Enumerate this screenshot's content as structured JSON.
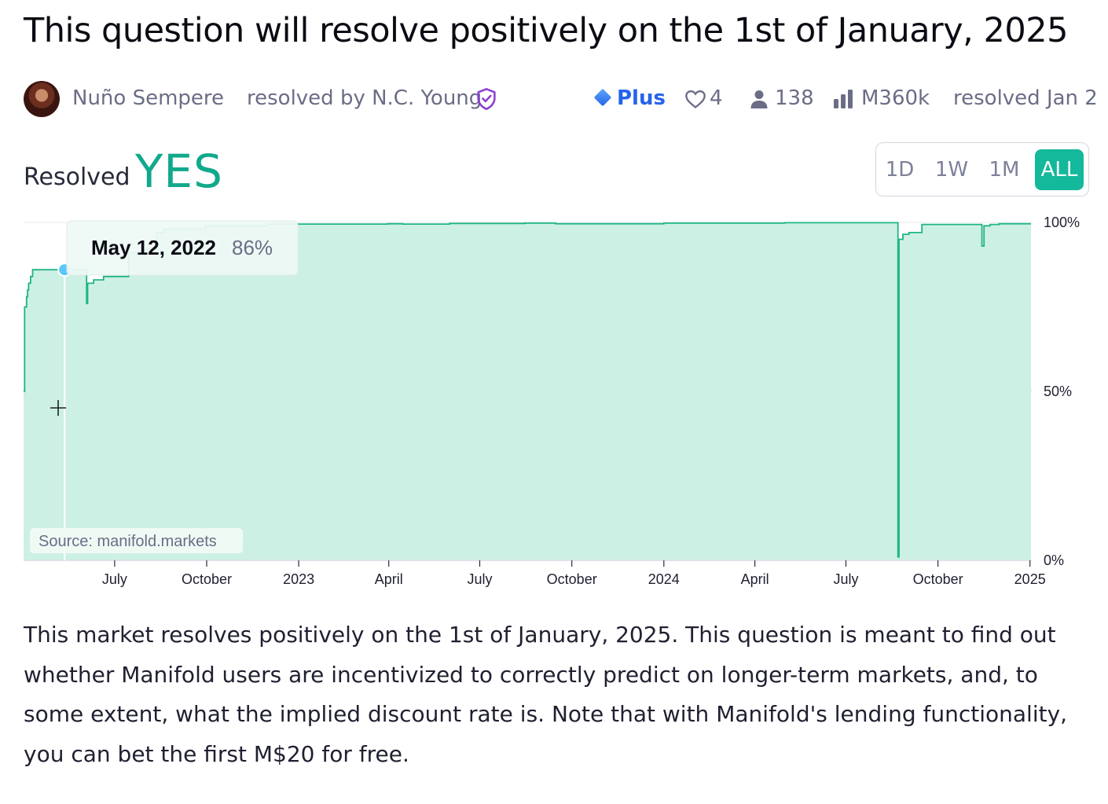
{
  "market": {
    "title": "This question will resolve positively on the 1st of January, 2025",
    "creator": "Nuño Sempere",
    "resolved_by": "resolved by N.C. Young",
    "plus_label": "Plus",
    "likes": "4",
    "traders": "138",
    "volume": "M360k",
    "resolved_date": "resolved Jan 2",
    "resolution_label": "Resolved",
    "resolution_value": "YES",
    "description": "This market resolves positively on the 1st of January, 2025. This question is meant to find out whether Manifold users are incentivized to correctly predict on longer-term markets, and, to some extent, what the implied discount rate is. Note that with Manifold's lending functionality, you can bet the first M$20 for free."
  },
  "time_range": {
    "options": [
      "1D",
      "1W",
      "1M",
      "ALL"
    ],
    "selected": "ALL"
  },
  "colors": {
    "accent": "#14b89a",
    "yes": "#11a98b",
    "line": "#1fb585",
    "fill": "#cdf0e4",
    "link": "#2563eb",
    "moderator_shield": "#8b3fd1",
    "cursor_dot": "#5ac8fa"
  },
  "icons": [
    "avatar",
    "moderator-shield-icon",
    "plus-diamond-icon",
    "heart-icon",
    "person-icon",
    "bar-chart-icon"
  ],
  "chart_data": {
    "type": "area",
    "title": "",
    "xlabel": "",
    "ylabel": "",
    "ylim": [
      0,
      100
    ],
    "y_ticks": [
      "0%",
      "50%",
      "100%"
    ],
    "x_tick_labels": [
      "July",
      "October",
      "2023",
      "April",
      "July",
      "October",
      "2024",
      "April",
      "July",
      "October",
      "2025"
    ],
    "x_tick_dates": [
      "2022-07-01",
      "2022-10-01",
      "2023-01-01",
      "2023-04-01",
      "2023-07-01",
      "2023-10-01",
      "2024-01-01",
      "2024-04-01",
      "2024-07-01",
      "2024-10-01",
      "2025-01-01"
    ],
    "x_range": [
      "2022-04-01",
      "2025-01-02"
    ],
    "grid": "horizontal line at 50%",
    "source_label": "Source: manifold.markets",
    "tooltip": {
      "date": "May 12, 2022",
      "value": "86%",
      "x": "2022-05-12",
      "y": 86
    },
    "series": [
      {
        "x": [
          "2022-04-01",
          "2022-04-02",
          "2022-04-04",
          "2022-04-05",
          "2022-04-06",
          "2022-04-08",
          "2022-04-10",
          "2022-04-11",
          "2022-04-14",
          "2022-05-20",
          "2022-06-01",
          "2022-06-03",
          "2022-06-04",
          "2022-06-10",
          "2022-06-20",
          "2022-07-15",
          "2022-07-30",
          "2022-08-12",
          "2022-08-20",
          "2022-09-05",
          "2022-09-30",
          "2022-10-20",
          "2022-12-01",
          "2023-01-01",
          "2023-02-15",
          "2023-03-31",
          "2023-04-15",
          "2023-06-01",
          "2023-08-15",
          "2023-09-15",
          "2023-10-20",
          "2023-11-15",
          "2024-01-01",
          "2024-03-01",
          "2024-05-01",
          "2024-07-01",
          "2024-08-20",
          "2024-08-22",
          "2024-08-23",
          "2024-08-27",
          "2024-09-02",
          "2024-09-08",
          "2024-09-15",
          "2024-09-20",
          "2024-11-13",
          "2024-11-14",
          "2024-11-16",
          "2024-11-22",
          "2024-12-01",
          "2025-01-02"
        ],
        "y": [
          50,
          75,
          78,
          80,
          82,
          84,
          86,
          86,
          86,
          86,
          86,
          76,
          82,
          83,
          84,
          91,
          92,
          97,
          98,
          98,
          99,
          99,
          99.5,
          99.5,
          99.5,
          99.6,
          99.5,
          99.7,
          99.8,
          99.6,
          99.6,
          99.6,
          99.8,
          99.8,
          99.9,
          99.9,
          99.9,
          1,
          95,
          96.5,
          97,
          97,
          99.4,
          99.4,
          99.4,
          93,
          99,
          99.4,
          99.6,
          99.6
        ]
      }
    ]
  }
}
